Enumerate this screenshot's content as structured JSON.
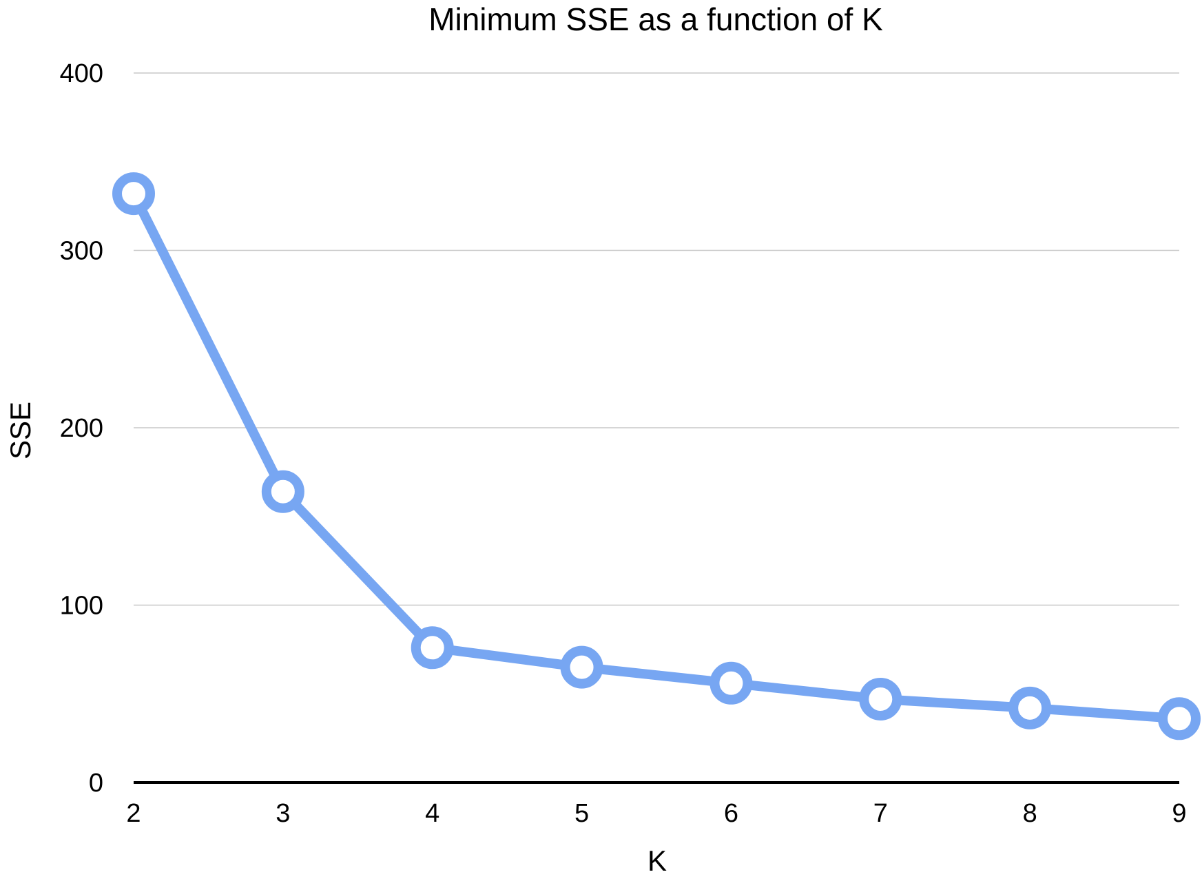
{
  "chart_data": {
    "type": "line",
    "title": "Minimum SSE as a function of K",
    "xlabel": "K",
    "ylabel": "SSE",
    "x": [
      2,
      3,
      4,
      5,
      6,
      7,
      8,
      9
    ],
    "x_tick_labels": [
      "2",
      "3",
      "4",
      "5",
      "6",
      "7",
      "8",
      "9"
    ],
    "series": [
      {
        "values": [
          332,
          164,
          76,
          65,
          56,
          47,
          42,
          36
        ]
      }
    ],
    "xlim": [
      2,
      9
    ],
    "ylim": [
      0,
      400
    ],
    "y_ticks": [
      0,
      100,
      200,
      300,
      400
    ],
    "y_tick_labels": [
      "0",
      "100",
      "200",
      "300",
      "400"
    ],
    "grid": true,
    "legend": "none",
    "colors": {
      "line": "#77a6f2",
      "marker_fill": "#ffffff",
      "grid": "#c8c8c8",
      "axis": "#000000"
    }
  }
}
